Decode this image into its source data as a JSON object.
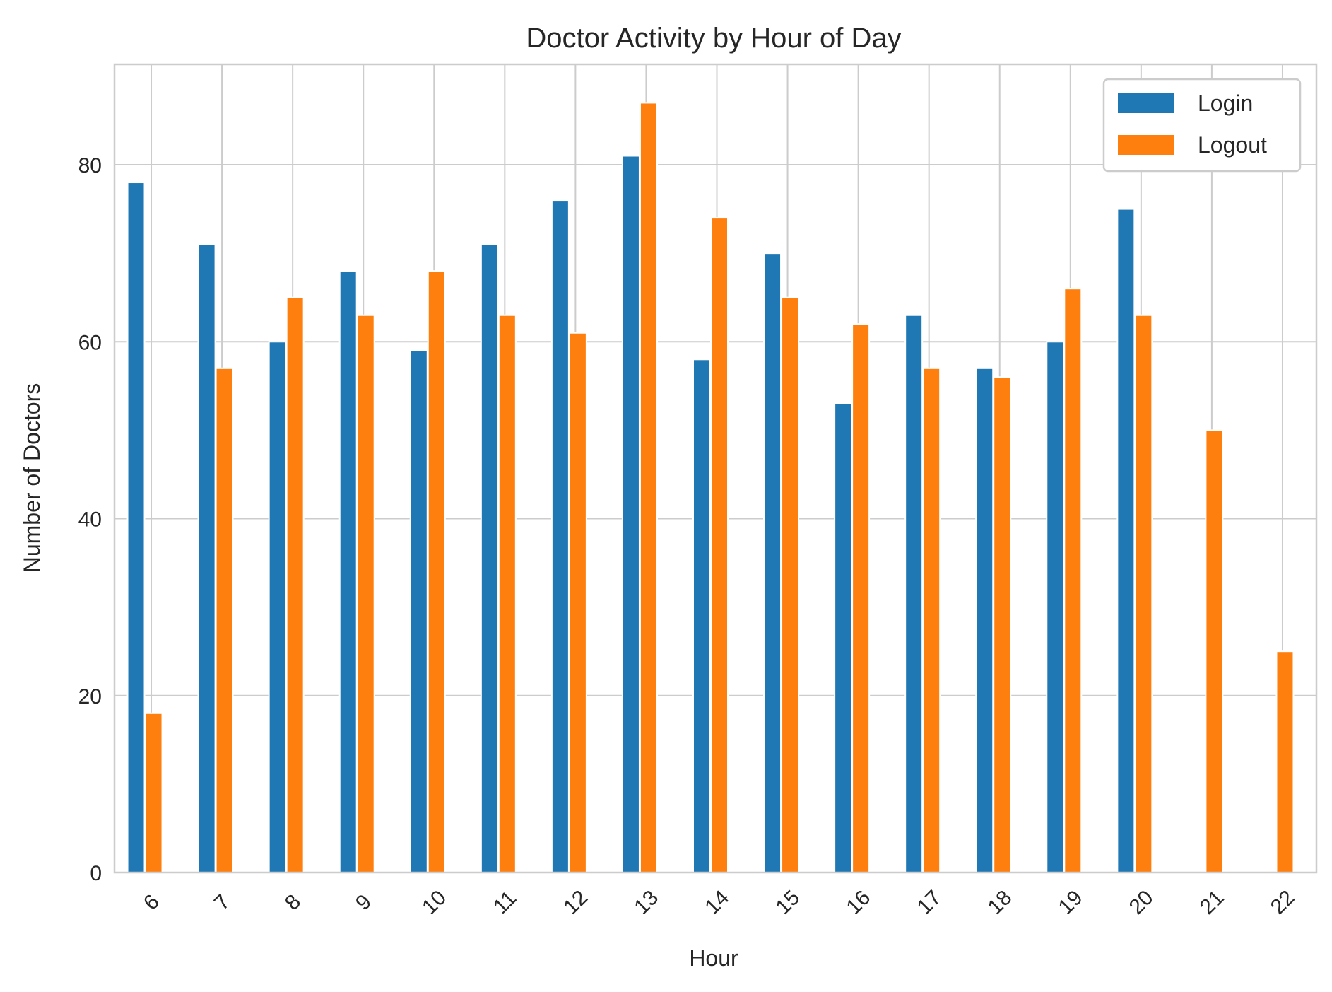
{
  "chart_data": {
    "type": "bar",
    "title": "Doctor Activity by Hour of Day",
    "xlabel": "Hour",
    "ylabel": "Number of Doctors",
    "categories": [
      "6",
      "7",
      "8",
      "9",
      "10",
      "11",
      "12",
      "13",
      "14",
      "15",
      "16",
      "17",
      "18",
      "19",
      "20",
      "21",
      "22"
    ],
    "series": [
      {
        "name": "Login",
        "color": "#1f77b4",
        "values": [
          78,
          71,
          60,
          68,
          59,
          71,
          76,
          81,
          58,
          70,
          53,
          63,
          57,
          60,
          75,
          0,
          0
        ]
      },
      {
        "name": "Logout",
        "color": "#ff7f0e",
        "values": [
          18,
          57,
          65,
          63,
          68,
          63,
          61,
          87,
          74,
          65,
          62,
          57,
          56,
          66,
          63,
          50,
          25
        ]
      }
    ],
    "ylim": [
      0,
      91.35
    ],
    "yticks": [
      0,
      20,
      40,
      60,
      80
    ],
    "grid": true,
    "legend_position": "top-right",
    "xtick_rotation": -45
  }
}
